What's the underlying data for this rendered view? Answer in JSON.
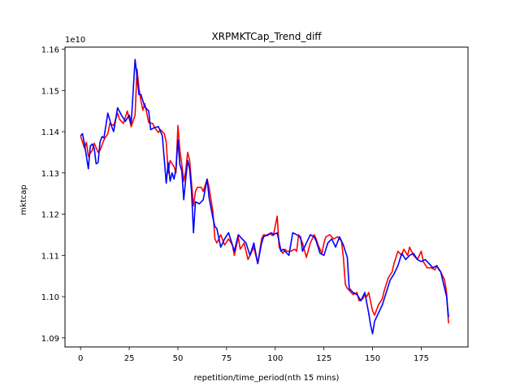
{
  "chart_data": {
    "type": "line",
    "title": "XRPMKTCap_Trend_diff",
    "xlabel": "repetition/time_period(nth 15 mins)",
    "ylabel": "mktcap",
    "y_offset_label": "1e10",
    "xlim": [
      -8,
      199
    ],
    "ylim": [
      1.0878,
      1.1605
    ],
    "x_ticks": [
      0,
      25,
      50,
      75,
      100,
      125,
      150,
      175
    ],
    "x_tick_labels": [
      "0",
      "25",
      "50",
      "75",
      "100",
      "125",
      "150",
      "175"
    ],
    "y_ticks": [
      1.09,
      1.1,
      1.11,
      1.12,
      1.13,
      1.14,
      1.15,
      1.16
    ],
    "y_tick_labels": [
      "1.09",
      "1.10",
      "1.11",
      "1.12",
      "1.13",
      "1.14",
      "1.15",
      "1.16"
    ],
    "grid": false,
    "colors": {
      "series_a": "#ff0000",
      "series_b": "#0000ff"
    },
    "series": [
      {
        "color": "#ff0000",
        "x": [
          0,
          2,
          3,
          4,
          6,
          7,
          9,
          10,
          12,
          14,
          15,
          17,
          19,
          20,
          22,
          24,
          26,
          28,
          29,
          30,
          31,
          32,
          33,
          35,
          37,
          38,
          40,
          41,
          43,
          44,
          45,
          46,
          48,
          49,
          50,
          51,
          52,
          53,
          54,
          55,
          56,
          58,
          59,
          60,
          62,
          63,
          65,
          66,
          68,
          69,
          70,
          72,
          74,
          76,
          78,
          79,
          81,
          82,
          84,
          86,
          88,
          89,
          91,
          93,
          94,
          96,
          97,
          99,
          101,
          102,
          103,
          104,
          105,
          106,
          108,
          110,
          111,
          112,
          114,
          116,
          118,
          120,
          121,
          122,
          124,
          125,
          126,
          128,
          130,
          132,
          134,
          135,
          136,
          137,
          138,
          140,
          142,
          143,
          145,
          146,
          147,
          148,
          150,
          151,
          153,
          155,
          156,
          158,
          160,
          161,
          163,
          165,
          166,
          168,
          169,
          171,
          173,
          175,
          176,
          178,
          180,
          182,
          183,
          184,
          185,
          186,
          187,
          188,
          189
        ],
        "values": [
          1.139,
          1.136,
          1.1374,
          1.134,
          1.1355,
          1.1372,
          1.135,
          1.1355,
          1.138,
          1.1395,
          1.142,
          1.1415,
          1.1445,
          1.143,
          1.142,
          1.145,
          1.1412,
          1.144,
          1.1552,
          1.1505,
          1.1475,
          1.1452,
          1.1468,
          1.1422,
          1.142,
          1.141,
          1.1398,
          1.1405,
          1.1395,
          1.1375,
          1.13,
          1.133,
          1.1315,
          1.13,
          1.1415,
          1.1355,
          1.132,
          1.128,
          1.1305,
          1.135,
          1.133,
          1.122,
          1.1255,
          1.1265,
          1.1265,
          1.1255,
          1.1285,
          1.1265,
          1.1205,
          1.114,
          1.113,
          1.115,
          1.1125,
          1.114,
          1.1125,
          1.11,
          1.1145,
          1.1115,
          1.113,
          1.109,
          1.111,
          1.112,
          1.108,
          1.114,
          1.115,
          1.1148,
          1.1152,
          1.1148,
          1.1195,
          1.112,
          1.111,
          1.1105,
          1.1115,
          1.111,
          1.111,
          1.1115,
          1.111,
          1.115,
          1.113,
          1.1095,
          1.113,
          1.115,
          1.114,
          1.1125,
          1.1105,
          1.113,
          1.1145,
          1.115,
          1.114,
          1.1145,
          1.1135,
          1.1095,
          1.103,
          1.102,
          1.1015,
          1.1005,
          1.101,
          1.099,
          1.0995,
          1.1005,
          1.1,
          1.101,
          1.0965,
          1.0955,
          1.098,
          1.0995,
          1.1015,
          1.1045,
          1.106,
          1.108,
          1.111,
          1.11,
          1.1115,
          1.11,
          1.112,
          1.11,
          1.109,
          1.111,
          1.1085,
          1.107,
          1.107,
          1.1065,
          1.1075,
          1.1065,
          1.106,
          1.105,
          1.104,
          1.101,
          1.0935
        ]
      },
      {
        "color": "#0000ff",
        "x": [
          0,
          1,
          2,
          3,
          4,
          5,
          6,
          7,
          8,
          9,
          10,
          11,
          12,
          14,
          16,
          17,
          19,
          21,
          23,
          25,
          26,
          28,
          30,
          31,
          33,
          35,
          36,
          38,
          40,
          42,
          44,
          45,
          46,
          47,
          48,
          49,
          50,
          51,
          52,
          53,
          54,
          55,
          56,
          57,
          58,
          59,
          61,
          63,
          65,
          66,
          68,
          69,
          70,
          72,
          74,
          76,
          78,
          79,
          81,
          83,
          85,
          87,
          89,
          91,
          93,
          94,
          96,
          98,
          99,
          101,
          103,
          104,
          105,
          107,
          109,
          111,
          113,
          114,
          116,
          118,
          120,
          121,
          123,
          125,
          127,
          129,
          131,
          133,
          135,
          137,
          138,
          140,
          142,
          144,
          146,
          148,
          149,
          150,
          151,
          153,
          155,
          157,
          159,
          161,
          163,
          165,
          167,
          169,
          171,
          173,
          175,
          177,
          179,
          181,
          183,
          185,
          186,
          187,
          188,
          189
        ],
        "values": [
          1.139,
          1.1395,
          1.137,
          1.134,
          1.131,
          1.1365,
          1.137,
          1.136,
          1.1322,
          1.1325,
          1.1375,
          1.1388,
          1.1385,
          1.1445,
          1.1412,
          1.14,
          1.1458,
          1.144,
          1.1425,
          1.144,
          1.142,
          1.1575,
          1.149,
          1.149,
          1.146,
          1.145,
          1.1405,
          1.141,
          1.1412,
          1.139,
          1.1275,
          1.1325,
          1.128,
          1.13,
          1.1285,
          1.131,
          1.138,
          1.132,
          1.1305,
          1.1235,
          1.1285,
          1.133,
          1.131,
          1.1255,
          1.1155,
          1.123,
          1.1225,
          1.1235,
          1.1285,
          1.124,
          1.119,
          1.117,
          1.1165,
          1.112,
          1.114,
          1.1155,
          1.1125,
          1.111,
          1.115,
          1.114,
          1.113,
          1.11,
          1.113,
          1.108,
          1.113,
          1.1145,
          1.115,
          1.1155,
          1.115,
          1.1155,
          1.111,
          1.1115,
          1.111,
          1.11,
          1.1155,
          1.115,
          1.1145,
          1.111,
          1.113,
          1.115,
          1.1145,
          1.1135,
          1.1105,
          1.11,
          1.113,
          1.114,
          1.112,
          1.1145,
          1.1125,
          1.1095,
          1.102,
          1.101,
          1.1005,
          1.099,
          1.101,
          1.096,
          1.093,
          1.091,
          1.094,
          1.096,
          1.098,
          1.101,
          1.104,
          1.1055,
          1.1075,
          1.1105,
          1.109,
          1.11,
          1.1105,
          1.109,
          1.1085,
          1.109,
          1.108,
          1.107,
          1.1075,
          1.106,
          1.104,
          1.102,
          1.1,
          1.095
        ]
      }
    ]
  }
}
